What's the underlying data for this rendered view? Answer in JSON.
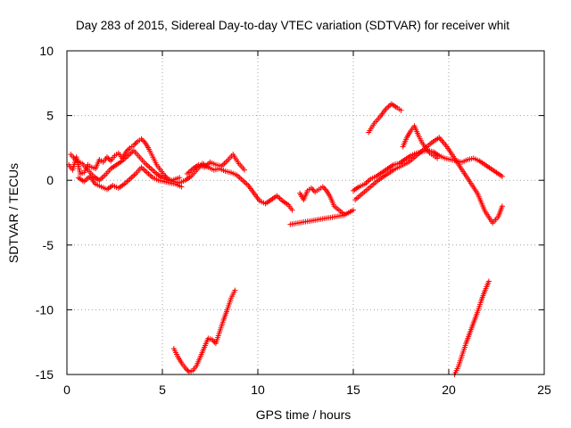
{
  "chart_data": {
    "type": "scatter",
    "title": "Day 283 of 2015, Sidereal Day-to-day VTEC variation (SDTVAR) for receiver whit",
    "xlabel": "GPS time / hours",
    "ylabel": "SDTVAR / TECUs",
    "xlim": [
      0,
      25
    ],
    "ylim": [
      -15,
      10
    ],
    "xticks": [
      0,
      5,
      10,
      15,
      20,
      25
    ],
    "yticks": [
      -15,
      -10,
      -5,
      0,
      5,
      10
    ],
    "xtick_labels": [
      "0",
      "5",
      "10",
      "15",
      "20",
      "25"
    ],
    "ytick_labels": [
      "-15",
      "-10",
      "-5",
      "0",
      "5",
      "10"
    ],
    "grid": true,
    "marker": "+",
    "series_color": "#ff0000",
    "segments": [
      [
        [
          0.1,
          1.2
        ],
        [
          0.3,
          0.8
        ],
        [
          0.5,
          1.8
        ],
        [
          0.7,
          0.5
        ],
        [
          0.9,
          0.6
        ],
        [
          1.1,
          1.2
        ],
        [
          1.3,
          1.0
        ],
        [
          1.5,
          0.9
        ],
        [
          1.7,
          1.6
        ],
        [
          1.9,
          1.4
        ],
        [
          2.1,
          1.8
        ],
        [
          2.3,
          1.5
        ],
        [
          2.5,
          1.9
        ],
        [
          2.7,
          2.1
        ],
        [
          2.9,
          1.7
        ],
        [
          3.1,
          2.2
        ],
        [
          3.3,
          2.5
        ],
        [
          3.5,
          2.7
        ],
        [
          3.7,
          3.0
        ],
        [
          3.9,
          3.2
        ],
        [
          4.1,
          2.9
        ],
        [
          4.3,
          2.4
        ],
        [
          4.5,
          1.8
        ],
        [
          4.7,
          1.2
        ],
        [
          4.9,
          0.8
        ],
        [
          5.1,
          0.4
        ],
        [
          5.3,
          0.1
        ],
        [
          5.5,
          0.0
        ],
        [
          5.7,
          0.1
        ],
        [
          5.9,
          0.2
        ]
      ],
      [
        [
          0.6,
          0.2
        ],
        [
          0.9,
          -0.1
        ],
        [
          1.2,
          0.3
        ],
        [
          1.5,
          -0.3
        ],
        [
          1.8,
          -0.5
        ],
        [
          2.1,
          -0.7
        ],
        [
          2.4,
          -0.4
        ],
        [
          2.7,
          -0.6
        ],
        [
          3.0,
          -0.3
        ],
        [
          3.3,
          0.1
        ],
        [
          3.6,
          0.5
        ],
        [
          3.9,
          1.0
        ],
        [
          4.2,
          0.6
        ],
        [
          4.5,
          0.2
        ],
        [
          4.8,
          0.0
        ],
        [
          5.1,
          -0.1
        ],
        [
          5.4,
          -0.2
        ],
        [
          5.7,
          -0.3
        ],
        [
          6.0,
          -0.5
        ]
      ],
      [
        [
          0.2,
          2.0
        ],
        [
          0.5,
          1.5
        ],
        [
          0.8,
          1.3
        ],
        [
          1.1,
          0.8
        ],
        [
          1.4,
          0.3
        ],
        [
          1.7,
          0.0
        ],
        [
          2.0,
          0.4
        ],
        [
          2.3,
          0.9
        ],
        [
          2.6,
          1.2
        ],
        [
          2.9,
          1.5
        ],
        [
          3.2,
          1.9
        ],
        [
          3.5,
          2.3
        ],
        [
          3.8,
          1.8
        ],
        [
          4.1,
          1.3
        ],
        [
          4.4,
          0.9
        ],
        [
          4.7,
          0.5
        ],
        [
          5.0,
          0.2
        ],
        [
          5.3,
          0.0
        ],
        [
          5.6,
          -0.1
        ],
        [
          5.9,
          -0.2
        ],
        [
          6.2,
          0.0
        ],
        [
          6.5,
          0.3
        ],
        [
          6.8,
          0.8
        ],
        [
          7.1,
          1.3
        ],
        [
          7.4,
          1.0
        ],
        [
          7.7,
          0.8
        ],
        [
          8.0,
          0.9
        ],
        [
          8.3,
          0.7
        ],
        [
          8.6,
          0.6
        ],
        [
          8.9,
          0.4
        ],
        [
          9.2,
          0.0
        ],
        [
          9.5,
          -0.4
        ],
        [
          9.8,
          -1.0
        ],
        [
          10.1,
          -1.6
        ],
        [
          10.4,
          -1.8
        ],
        [
          10.7,
          -1.5
        ],
        [
          11.0,
          -1.2
        ],
        [
          11.3,
          -1.6
        ],
        [
          11.6,
          -1.9
        ],
        [
          11.8,
          -2.3
        ]
      ],
      [
        [
          6.3,
          0.5
        ],
        [
          6.6,
          0.9
        ],
        [
          6.9,
          1.2
        ],
        [
          7.2,
          1.0
        ],
        [
          7.5,
          1.4
        ],
        [
          7.8,
          1.2
        ],
        [
          8.1,
          1.1
        ],
        [
          8.4,
          1.5
        ],
        [
          8.7,
          2.0
        ],
        [
          9.0,
          1.3
        ],
        [
          9.3,
          0.8
        ]
      ],
      [
        [
          12.2,
          -1.0
        ],
        [
          12.4,
          -1.5
        ],
        [
          12.6,
          -0.8
        ],
        [
          12.8,
          -0.6
        ],
        [
          13.0,
          -0.9
        ],
        [
          13.2,
          -0.7
        ],
        [
          13.4,
          -0.5
        ],
        [
          13.6,
          -0.8
        ],
        [
          13.8,
          -1.3
        ],
        [
          14.0,
          -2.0
        ],
        [
          14.5,
          -2.6
        ]
      ],
      [
        [
          15.0,
          -0.8
        ],
        [
          15.3,
          -0.5
        ],
        [
          15.6,
          -0.3
        ],
        [
          15.9,
          0.1
        ],
        [
          16.2,
          0.3
        ],
        [
          16.5,
          0.6
        ],
        [
          16.8,
          0.9
        ],
        [
          17.1,
          1.2
        ],
        [
          17.4,
          1.3
        ],
        [
          17.7,
          1.6
        ],
        [
          18.0,
          1.9
        ],
        [
          18.3,
          2.1
        ],
        [
          18.6,
          2.2
        ],
        [
          18.9,
          2.3
        ],
        [
          19.2,
          2.2
        ],
        [
          19.5,
          1.9
        ],
        [
          19.8,
          1.7
        ],
        [
          20.1,
          1.6
        ],
        [
          20.4,
          1.5
        ],
        [
          20.7,
          1.4
        ],
        [
          21.0,
          1.6
        ],
        [
          21.3,
          1.7
        ],
        [
          21.6,
          1.5
        ],
        [
          21.9,
          1.2
        ],
        [
          22.2,
          0.9
        ],
        [
          22.5,
          0.6
        ],
        [
          22.8,
          0.3
        ]
      ],
      [
        [
          15.1,
          -1.5
        ],
        [
          15.5,
          -1.0
        ],
        [
          15.9,
          -0.5
        ],
        [
          16.3,
          0.0
        ],
        [
          16.7,
          0.4
        ],
        [
          17.1,
          0.8
        ],
        [
          17.5,
          1.1
        ],
        [
          17.9,
          1.4
        ],
        [
          18.3,
          1.9
        ],
        [
          18.7,
          2.4
        ],
        [
          19.1,
          2.9
        ],
        [
          19.5,
          3.3
        ],
        [
          19.9,
          2.6
        ],
        [
          20.3,
          1.7
        ],
        [
          20.7,
          0.8
        ],
        [
          21.1,
          -0.1
        ],
        [
          21.5,
          -1.0
        ],
        [
          21.9,
          -2.4
        ],
        [
          22.3,
          -3.3
        ],
        [
          22.6,
          -2.8
        ],
        [
          22.8,
          -2.0
        ]
      ],
      [
        [
          15.8,
          3.7
        ],
        [
          16.1,
          4.4
        ],
        [
          16.4,
          4.9
        ],
        [
          16.7,
          5.5
        ],
        [
          17.0,
          5.9
        ],
        [
          17.3,
          5.6
        ],
        [
          17.5,
          5.4
        ]
      ],
      [
        [
          17.6,
          2.6
        ],
        [
          17.8,
          3.3
        ],
        [
          18.0,
          3.8
        ],
        [
          18.2,
          4.2
        ],
        [
          18.4,
          3.5
        ],
        [
          18.6,
          2.9
        ],
        [
          18.8,
          2.5
        ],
        [
          19.0,
          2.1
        ],
        [
          19.2,
          1.9
        ],
        [
          19.4,
          1.7
        ]
      ],
      [
        [
          5.6,
          -13.0
        ],
        [
          5.8,
          -13.6
        ],
        [
          6.0,
          -14.1
        ],
        [
          6.2,
          -14.5
        ],
        [
          6.4,
          -14.8
        ],
        [
          6.6,
          -14.7
        ],
        [
          6.8,
          -14.3
        ],
        [
          7.0,
          -13.6
        ],
        [
          7.2,
          -12.9
        ],
        [
          7.4,
          -12.2
        ],
        [
          7.6,
          -12.3
        ],
        [
          7.8,
          -12.6
        ],
        [
          8.0,
          -11.7
        ],
        [
          8.2,
          -10.8
        ],
        [
          8.4,
          -10.0
        ],
        [
          8.6,
          -9.1
        ],
        [
          8.8,
          -8.5
        ]
      ],
      [
        [
          20.3,
          -15.0
        ],
        [
          20.5,
          -14.4
        ],
        [
          20.7,
          -13.5
        ],
        [
          20.9,
          -12.6
        ],
        [
          21.1,
          -11.8
        ],
        [
          21.3,
          -11.0
        ],
        [
          21.5,
          -10.2
        ],
        [
          21.7,
          -9.3
        ],
        [
          21.9,
          -8.5
        ],
        [
          22.1,
          -7.8
        ]
      ],
      [
        [
          11.7,
          -3.4
        ],
        [
          14.5,
          -2.7
        ],
        [
          15.0,
          -2.3
        ]
      ]
    ]
  }
}
